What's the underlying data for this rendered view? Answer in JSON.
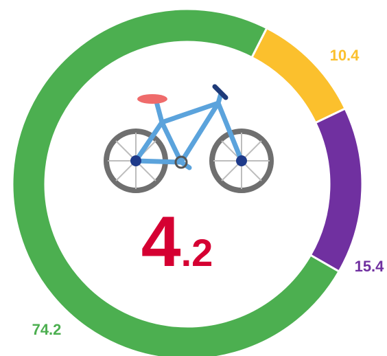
{
  "chart_data": {
    "type": "donut",
    "categories": [
      "yellow",
      "purple",
      "green"
    ],
    "values": [
      10.4,
      15.4,
      74.2
    ],
    "colors": [
      "#fbc02d",
      "#7030a0",
      "#4caf50"
    ],
    "center_label": [
      "4",
      ".2"
    ],
    "center_color": "#d50032"
  }
}
